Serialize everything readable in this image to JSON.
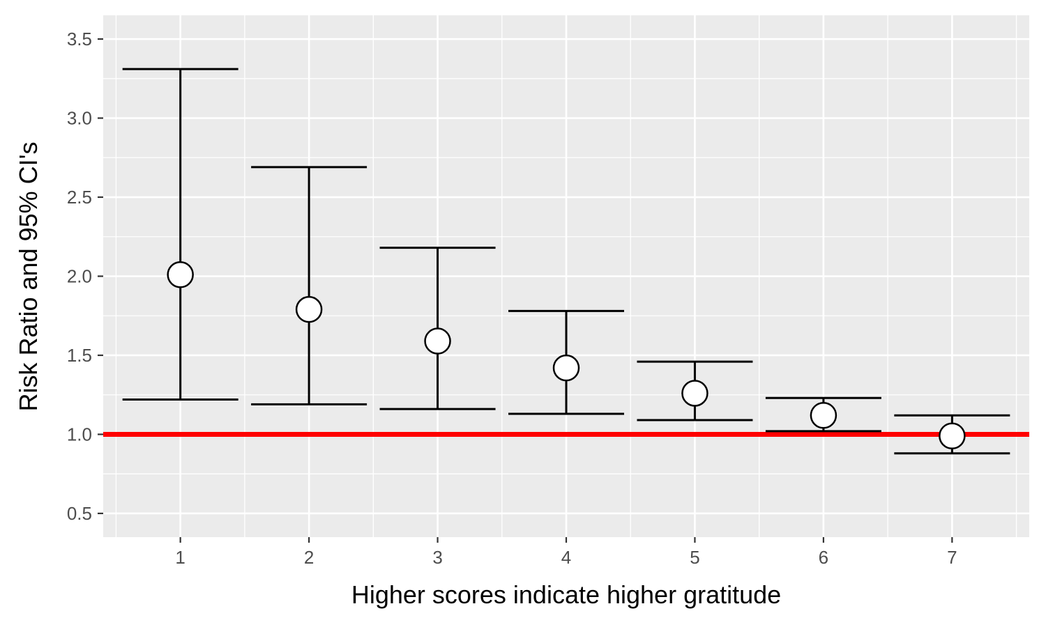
{
  "chart_data": {
    "type": "errorbar",
    "xlabel": "Higher scores indicate higher gratitude",
    "ylabel": "Risk Ratio and 95% CI's",
    "x_ticks": [
      "1",
      "2",
      "3",
      "4",
      "5",
      "6",
      "7"
    ],
    "y_ticks": [
      "0.5",
      "1.0",
      "1.5",
      "2.0",
      "2.5",
      "3.0",
      "3.5"
    ],
    "xlim": [
      0.4,
      7.6
    ],
    "ylim": [
      0.35,
      3.65
    ],
    "grid": true,
    "reference_line": {
      "y": 1.0,
      "color": "#ff0000"
    },
    "points": [
      {
        "x": 1,
        "estimate": 2.01,
        "lower": 1.22,
        "upper": 3.31
      },
      {
        "x": 2,
        "estimate": 1.79,
        "lower": 1.19,
        "upper": 2.69
      },
      {
        "x": 3,
        "estimate": 1.59,
        "lower": 1.16,
        "upper": 2.18
      },
      {
        "x": 4,
        "estimate": 1.42,
        "lower": 1.13,
        "upper": 1.78
      },
      {
        "x": 5,
        "estimate": 1.26,
        "lower": 1.09,
        "upper": 1.46
      },
      {
        "x": 6,
        "estimate": 1.12,
        "lower": 1.02,
        "upper": 1.23
      },
      {
        "x": 7,
        "estimate": 0.99,
        "lower": 0.88,
        "upper": 1.12
      }
    ],
    "colors": {
      "panel": "#ebebeb",
      "grid": "#ffffff",
      "marker_fill": "#ffffff",
      "marker_stroke": "#000000",
      "errorbar": "#000000"
    }
  }
}
